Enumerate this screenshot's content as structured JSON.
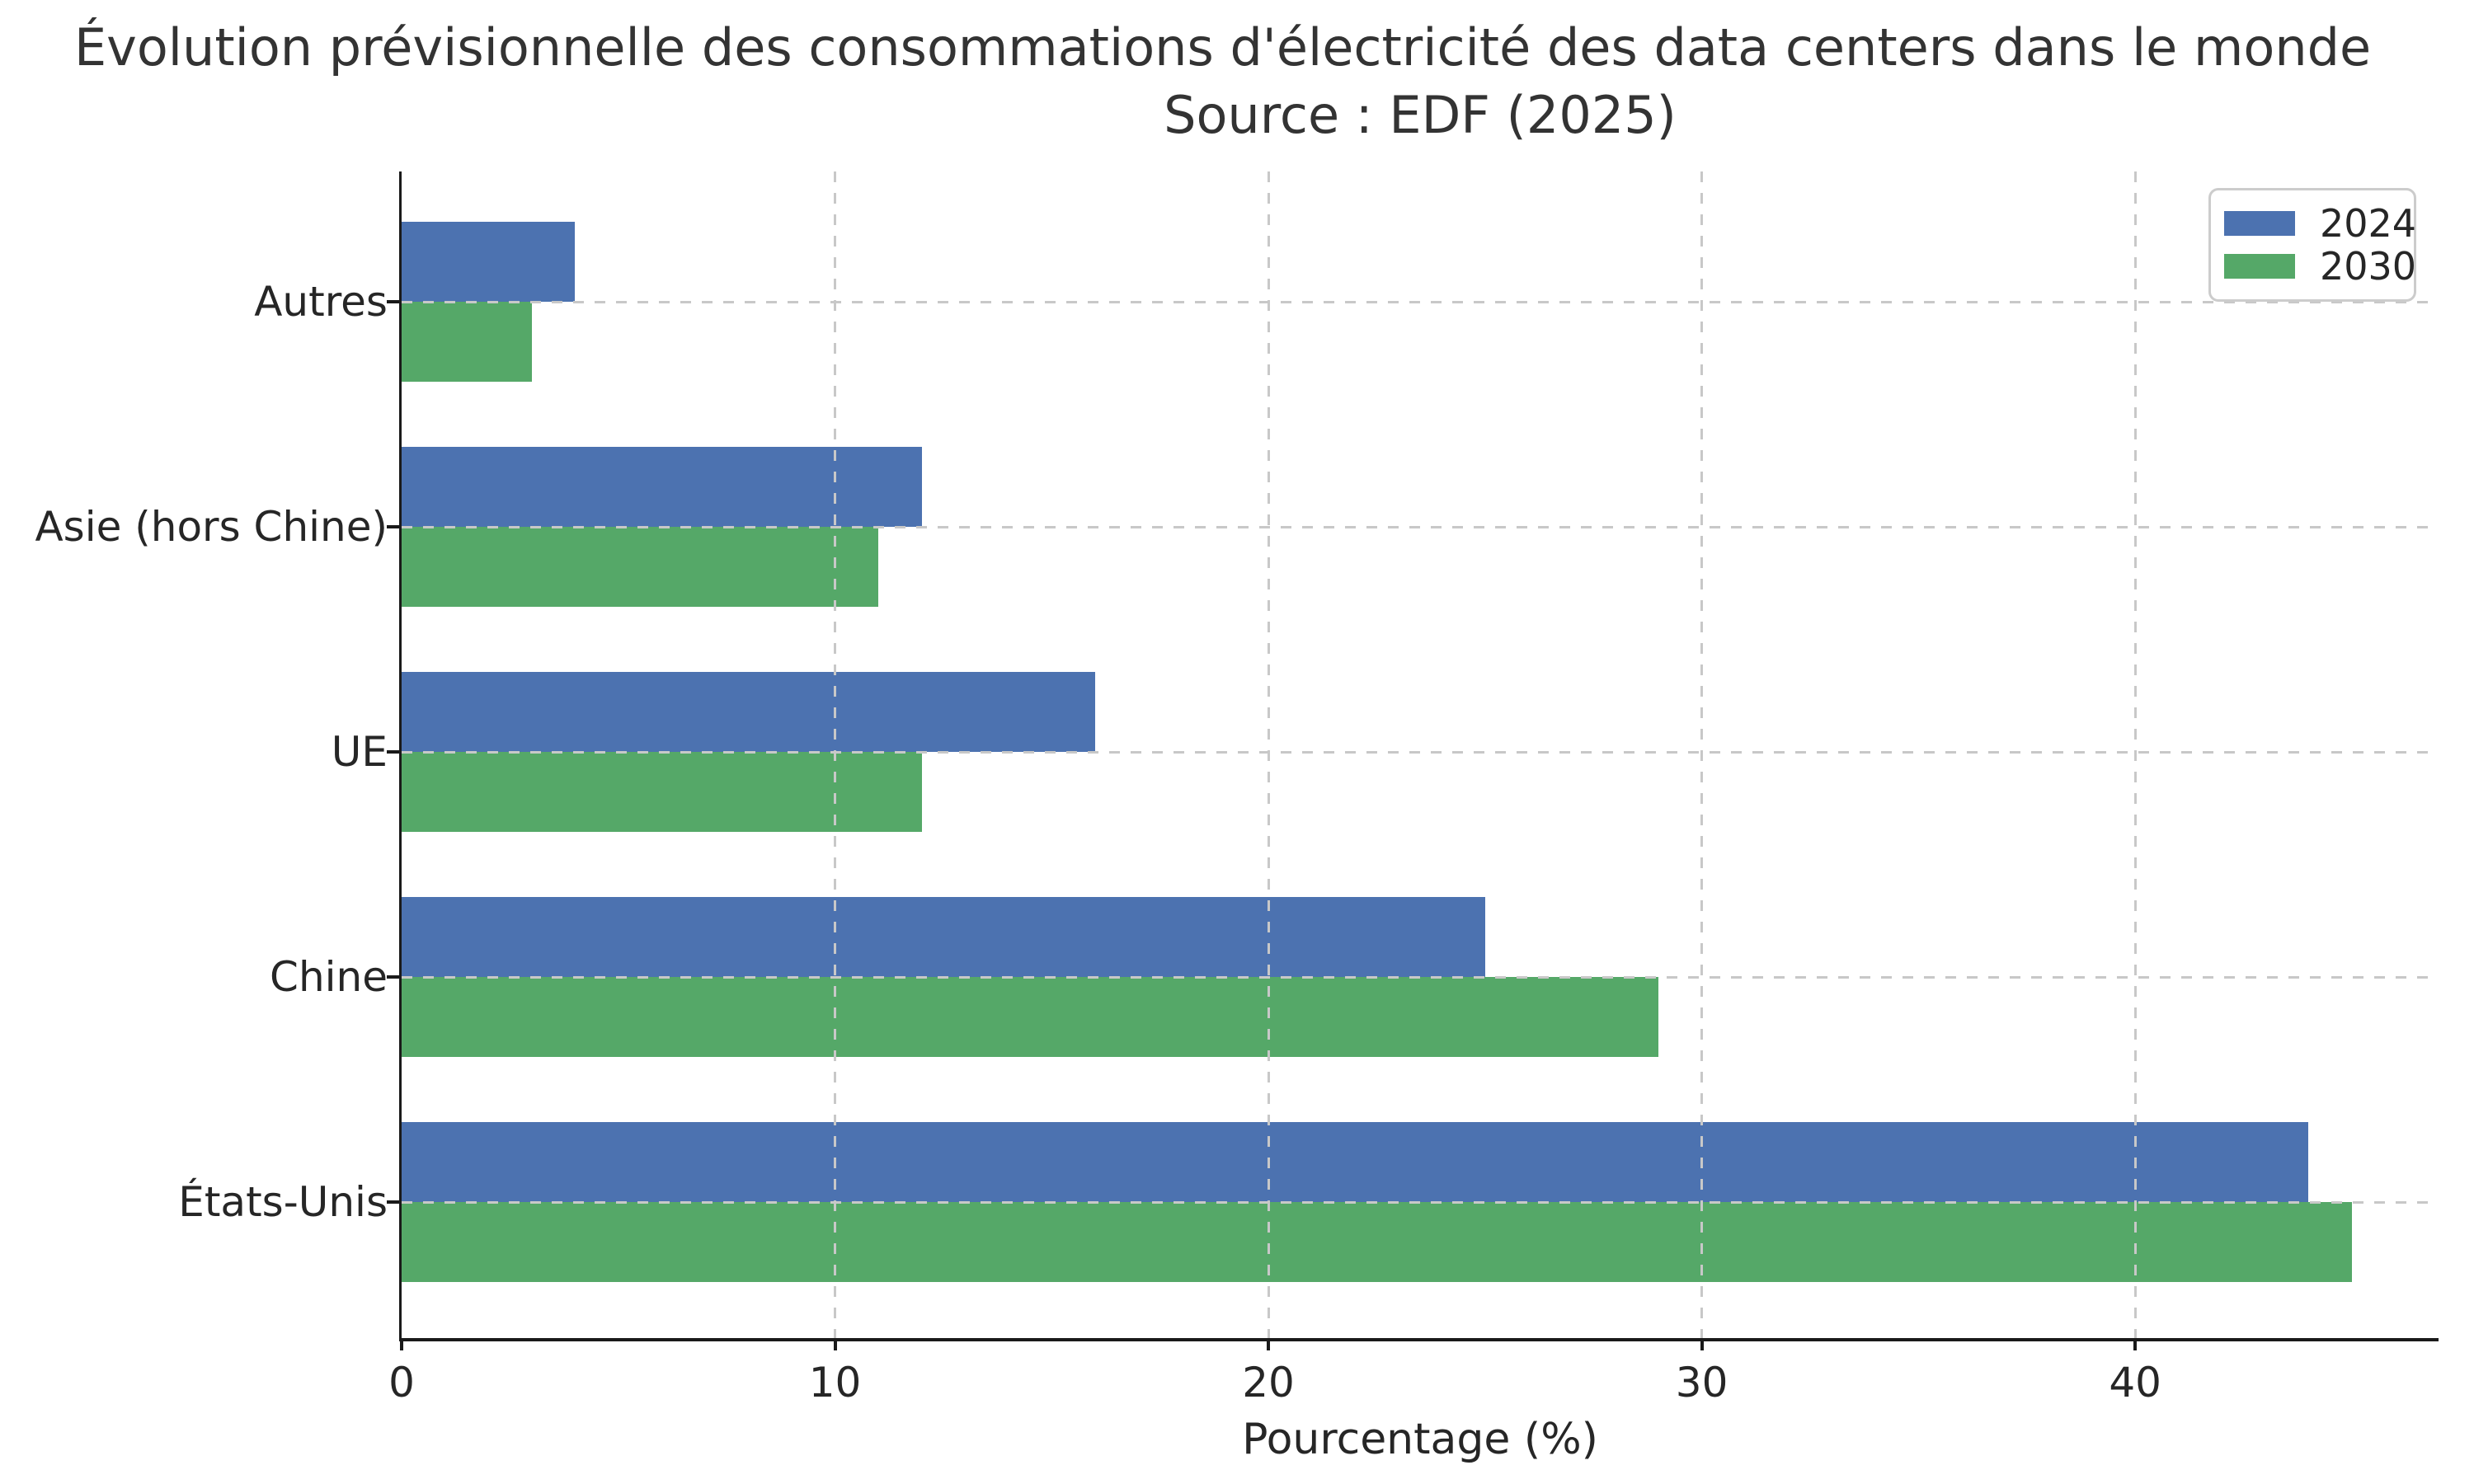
{
  "figure": {
    "title_line1": "Évolution prévisionnelle des consommations d'électricité des data centers dans le monde",
    "title_line2": "Source : EDF (2025)"
  },
  "chart_data": {
    "type": "bar",
    "orientation": "horizontal",
    "title": "Évolution prévisionnelle des consommations d'électricité des data centers dans le monde",
    "subtitle": "Source : EDF (2025)",
    "categories": [
      "Autres",
      "Asie (hors Chine)",
      "UE",
      "Chine",
      "États-Unis"
    ],
    "series": [
      {
        "name": "2024",
        "color": "#4C72B0",
        "values": [
          4,
          12,
          16,
          25,
          44
        ]
      },
      {
        "name": "2030",
        "color": "#55A868",
        "values": [
          3,
          11,
          12,
          29,
          45
        ]
      }
    ],
    "xlabel": "Pourcentage (%)",
    "xlim": [
      0,
      47
    ],
    "xticks": [
      0,
      10,
      20,
      30,
      40
    ],
    "grid": {
      "visible": true,
      "style": "dashed",
      "color": "#c8c8c8",
      "axes": "both"
    },
    "legend": {
      "position": "upper-right",
      "entries": [
        "2024",
        "2030"
      ]
    }
  }
}
